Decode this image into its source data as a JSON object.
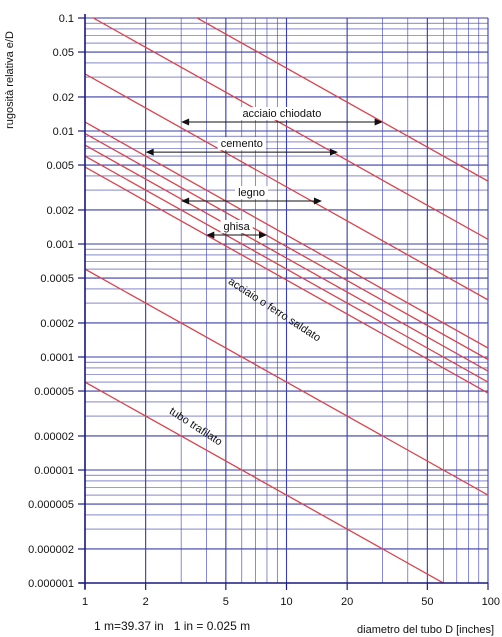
{
  "chart_data": {
    "type": "line",
    "title": "",
    "xlabel": "diametro del tubo D [inches]",
    "ylabel": "rugosità relativa e/D",
    "x_scale": "log",
    "y_scale": "log",
    "xlim": [
      1,
      100
    ],
    "ylim": [
      1e-06,
      0.1
    ],
    "x_ticks": [
      1,
      2,
      5,
      10,
      20,
      50,
      100
    ],
    "x_tick_labels": [
      "1",
      "2",
      "5",
      "10",
      "20",
      "50",
      "100"
    ],
    "y_ticks": [
      0.1,
      0.05,
      0.02,
      0.01,
      0.005,
      0.002,
      0.001,
      0.0005,
      0.0002,
      0.0001,
      5e-05,
      2e-05,
      1e-05,
      5e-06,
      2e-06,
      1e-06
    ],
    "y_tick_labels": [
      "0.1",
      "0.05",
      "0.02",
      "0.01",
      "0.005",
      "0.002",
      "0.001",
      "0.0005",
      "0.0002",
      "0.0001",
      "0.00005",
      "0.00002",
      "0.00001",
      "0.000005",
      "0.000002",
      "0.000001"
    ],
    "grid": true,
    "colors": {
      "lines": "#d9434b",
      "grid": "#3b3fa8",
      "axis": "#1a1a80",
      "arrows": "#111111"
    },
    "series": [
      {
        "points": [
          [
            1,
            0.36
          ],
          [
            100,
            0.0036
          ]
        ]
      },
      {
        "points": [
          [
            1,
            0.11
          ],
          [
            100,
            0.0011
          ]
        ]
      },
      {
        "points": [
          [
            1,
            0.032
          ],
          [
            100,
            0.00032
          ]
        ]
      },
      {
        "points": [
          [
            1,
            0.012
          ],
          [
            100,
            0.00012
          ]
        ]
      },
      {
        "points": [
          [
            1,
            0.0095
          ],
          [
            100,
            9.5e-05
          ]
        ]
      },
      {
        "points": [
          [
            1,
            0.0075
          ],
          [
            100,
            7.5e-05
          ]
        ]
      },
      {
        "points": [
          [
            1,
            0.006
          ],
          [
            100,
            6e-05
          ]
        ]
      },
      {
        "points": [
          [
            1,
            0.0048
          ],
          [
            100,
            4.8e-05
          ]
        ]
      },
      {
        "points": [
          [
            1,
            0.0006
          ],
          [
            100,
            6e-06
          ]
        ]
      },
      {
        "points": [
          [
            1,
            6e-05
          ],
          [
            100,
            6e-07
          ]
        ]
      }
    ],
    "ranges": [
      {
        "label": "acciaio chiodato",
        "x1": 3,
        "x2": 30,
        "y": 0.012
      },
      {
        "label": "cemento",
        "x1": 2,
        "x2": 18,
        "y": 0.0065
      },
      {
        "label": "legno",
        "x1": 3,
        "x2": 15,
        "y": 0.0024
      },
      {
        "label": "ghisa",
        "x1": 4,
        "x2": 8,
        "y": 0.0012
      }
    ],
    "line_labels": [
      {
        "label": "acciaio o ferro saldato",
        "x": 5.1,
        "y": 0.00045,
        "angle": 33
      },
      {
        "label": "tubo trafilato",
        "x": 2.6,
        "y": 3.2e-05,
        "angle": 33
      }
    ],
    "footnote": "1 m=39.37 in   1 in = 0.025 m"
  }
}
